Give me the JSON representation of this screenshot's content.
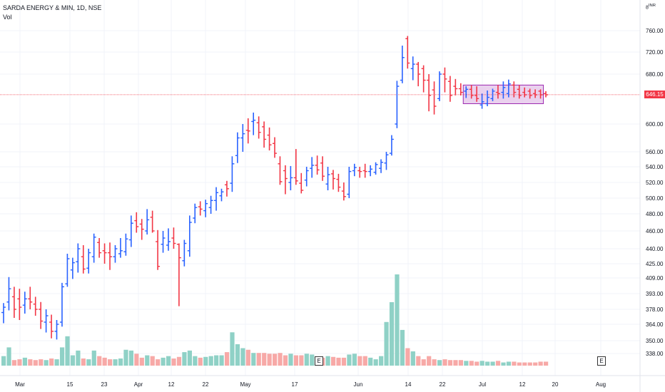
{
  "header": {
    "title": "SARDA ENERGY & MIN, 1D, NSE",
    "volume_label": "Vol"
  },
  "currency_label": "INR",
  "currency_index": "8",
  "last_price_label": "646.15",
  "earnings_badge": "E",
  "colors": {
    "up": "#2962ff",
    "down": "#f23645",
    "vol_up": "#8fd1c6",
    "vol_down": "#f7a9a7",
    "box_fill": "#e1bee7",
    "box_stroke": "#9c27b0",
    "grid": "#f0f3fa"
  },
  "chart_data": {
    "type": "ohlc",
    "symbol": "SARDA ENERGY & MIN",
    "interval": "1D",
    "exchange": "NSE",
    "y_ticks": [
      "760.00",
      "720.00",
      "680.00",
      "600.00",
      "560.00",
      "540.00",
      "520.00",
      "500.00",
      "480.00",
      "460.00",
      "440.00",
      "425.00",
      "409.00",
      "393.00",
      "378.00",
      "364.00",
      "350.00",
      "338.00"
    ],
    "x_ticks": [
      "Mar",
      "15",
      "23",
      "Apr",
      "12",
      "22",
      "May",
      "17",
      "Jun",
      "14",
      "22",
      "Jul",
      "12",
      "20",
      "Aug"
    ],
    "last_price": 646.15,
    "consolidation_box": {
      "price_high": 662,
      "price_low": 632
    },
    "bars": [
      {
        "o": 375,
        "h": 384,
        "l": 365,
        "c": 380
      },
      {
        "o": 385,
        "h": 410,
        "l": 377,
        "c": 398
      },
      {
        "o": 390,
        "h": 400,
        "l": 370,
        "c": 378
      },
      {
        "o": 388,
        "h": 398,
        "l": 368,
        "c": 380
      },
      {
        "o": 382,
        "h": 395,
        "l": 374,
        "c": 388
      },
      {
        "o": 388,
        "h": 400,
        "l": 378,
        "c": 385
      },
      {
        "o": 383,
        "h": 390,
        "l": 372,
        "c": 378
      },
      {
        "o": 378,
        "h": 385,
        "l": 360,
        "c": 367
      },
      {
        "o": 366,
        "h": 378,
        "l": 357,
        "c": 372
      },
      {
        "o": 366,
        "h": 373,
        "l": 352,
        "c": 358
      },
      {
        "o": 358,
        "h": 368,
        "l": 351,
        "c": 364
      },
      {
        "o": 366,
        "h": 404,
        "l": 362,
        "c": 400
      },
      {
        "o": 403,
        "h": 435,
        "l": 400,
        "c": 430
      },
      {
        "o": 418,
        "h": 431,
        "l": 408,
        "c": 426
      },
      {
        "o": 427,
        "h": 446,
        "l": 415,
        "c": 440
      },
      {
        "o": 432,
        "h": 444,
        "l": 414,
        "c": 419
      },
      {
        "o": 420,
        "h": 440,
        "l": 414,
        "c": 436
      },
      {
        "o": 432,
        "h": 457,
        "l": 426,
        "c": 453
      },
      {
        "o": 447,
        "h": 452,
        "l": 431,
        "c": 436
      },
      {
        "o": 438,
        "h": 446,
        "l": 425,
        "c": 436
      },
      {
        "o": 436,
        "h": 447,
        "l": 418,
        "c": 432
      },
      {
        "o": 432,
        "h": 444,
        "l": 426,
        "c": 440
      },
      {
        "o": 435,
        "h": 452,
        "l": 431,
        "c": 438
      },
      {
        "o": 437,
        "h": 457,
        "l": 433,
        "c": 451
      },
      {
        "o": 450,
        "h": 478,
        "l": 442,
        "c": 469
      },
      {
        "o": 472,
        "h": 482,
        "l": 458,
        "c": 465
      },
      {
        "o": 468,
        "h": 474,
        "l": 450,
        "c": 462
      },
      {
        "o": 460,
        "h": 486,
        "l": 456,
        "c": 473
      },
      {
        "o": 476,
        "h": 484,
        "l": 458,
        "c": 460
      },
      {
        "o": 448,
        "h": 461,
        "l": 418,
        "c": 422
      },
      {
        "o": 445,
        "h": 460,
        "l": 436,
        "c": 452
      },
      {
        "o": 444,
        "h": 463,
        "l": 438,
        "c": 448
      },
      {
        "o": 452,
        "h": 464,
        "l": 440,
        "c": 446
      },
      {
        "o": 445,
        "h": 446,
        "l": 381,
        "c": 431
      },
      {
        "o": 428,
        "h": 450,
        "l": 422,
        "c": 446
      },
      {
        "o": 438,
        "h": 478,
        "l": 432,
        "c": 470
      },
      {
        "o": 475,
        "h": 493,
        "l": 469,
        "c": 488
      },
      {
        "o": 489,
        "h": 496,
        "l": 478,
        "c": 486
      },
      {
        "o": 484,
        "h": 498,
        "l": 476,
        "c": 493
      },
      {
        "o": 488,
        "h": 503,
        "l": 480,
        "c": 497
      },
      {
        "o": 497,
        "h": 514,
        "l": 484,
        "c": 507
      },
      {
        "o": 503,
        "h": 512,
        "l": 496,
        "c": 508
      },
      {
        "o": 517,
        "h": 522,
        "l": 502,
        "c": 512
      },
      {
        "o": 519,
        "h": 554,
        "l": 508,
        "c": 544
      },
      {
        "o": 555,
        "h": 588,
        "l": 545,
        "c": 580
      },
      {
        "o": 580,
        "h": 600,
        "l": 560,
        "c": 586
      },
      {
        "o": 591,
        "h": 609,
        "l": 572,
        "c": 590
      },
      {
        "o": 604,
        "h": 618,
        "l": 584,
        "c": 606
      },
      {
        "o": 602,
        "h": 612,
        "l": 579,
        "c": 588
      },
      {
        "o": 596,
        "h": 604,
        "l": 566,
        "c": 578
      },
      {
        "o": 584,
        "h": 595,
        "l": 562,
        "c": 570
      },
      {
        "o": 572,
        "h": 581,
        "l": 552,
        "c": 558
      },
      {
        "o": 544,
        "h": 554,
        "l": 517,
        "c": 521
      },
      {
        "o": 535,
        "h": 542,
        "l": 505,
        "c": 525
      },
      {
        "o": 520,
        "h": 541,
        "l": 510,
        "c": 526
      },
      {
        "o": 526,
        "h": 564,
        "l": 517,
        "c": 522
      },
      {
        "o": 519,
        "h": 532,
        "l": 506,
        "c": 510
      },
      {
        "o": 523,
        "h": 540,
        "l": 515,
        "c": 535
      },
      {
        "o": 538,
        "h": 553,
        "l": 526,
        "c": 542
      },
      {
        "o": 542,
        "h": 555,
        "l": 530,
        "c": 536
      },
      {
        "o": 545,
        "h": 554,
        "l": 522,
        "c": 528
      },
      {
        "o": 518,
        "h": 540,
        "l": 510,
        "c": 530
      },
      {
        "o": 531,
        "h": 536,
        "l": 511,
        "c": 525
      },
      {
        "o": 524,
        "h": 531,
        "l": 508,
        "c": 514
      },
      {
        "o": 509,
        "h": 520,
        "l": 497,
        "c": 502
      },
      {
        "o": 505,
        "h": 540,
        "l": 500,
        "c": 534
      },
      {
        "o": 535,
        "h": 544,
        "l": 528,
        "c": 539
      },
      {
        "o": 535,
        "h": 540,
        "l": 526,
        "c": 534
      },
      {
        "o": 535,
        "h": 544,
        "l": 526,
        "c": 534
      },
      {
        "o": 534,
        "h": 542,
        "l": 528,
        "c": 537
      },
      {
        "o": 533,
        "h": 546,
        "l": 530,
        "c": 543
      },
      {
        "o": 538,
        "h": 550,
        "l": 532,
        "c": 546
      },
      {
        "o": 545,
        "h": 560,
        "l": 536,
        "c": 556
      },
      {
        "o": 558,
        "h": 584,
        "l": 555,
        "c": 578
      },
      {
        "o": 600,
        "h": 669,
        "l": 594,
        "c": 660
      },
      {
        "o": 670,
        "h": 732,
        "l": 665,
        "c": 710
      },
      {
        "o": 745,
        "h": 750,
        "l": 690,
        "c": 700
      },
      {
        "o": 690,
        "h": 712,
        "l": 670,
        "c": 698
      },
      {
        "o": 698,
        "h": 702,
        "l": 660,
        "c": 680
      },
      {
        "o": 690,
        "h": 696,
        "l": 650,
        "c": 670
      },
      {
        "o": 670,
        "h": 680,
        "l": 620,
        "c": 645
      },
      {
        "o": 654,
        "h": 668,
        "l": 615,
        "c": 628
      },
      {
        "o": 640,
        "h": 685,
        "l": 636,
        "c": 680
      },
      {
        "o": 680,
        "h": 692,
        "l": 650,
        "c": 672
      },
      {
        "o": 668,
        "h": 677,
        "l": 635,
        "c": 645
      },
      {
        "o": 660,
        "h": 672,
        "l": 645,
        "c": 656
      },
      {
        "o": 656,
        "h": 665,
        "l": 645,
        "c": 650
      },
      {
        "o": 652,
        "h": 660,
        "l": 641,
        "c": 655
      },
      {
        "o": 655,
        "h": 662,
        "l": 640,
        "c": 645
      },
      {
        "o": 645,
        "h": 660,
        "l": 635,
        "c": 640
      },
      {
        "o": 630,
        "h": 648,
        "l": 624,
        "c": 635
      },
      {
        "o": 632,
        "h": 653,
        "l": 628,
        "c": 642
      },
      {
        "o": 640,
        "h": 656,
        "l": 636,
        "c": 652
      },
      {
        "o": 650,
        "h": 662,
        "l": 640,
        "c": 648
      },
      {
        "o": 650,
        "h": 668,
        "l": 640,
        "c": 658
      },
      {
        "o": 648,
        "h": 671,
        "l": 642,
        "c": 664
      },
      {
        "o": 662,
        "h": 668,
        "l": 642,
        "c": 650
      },
      {
        "o": 655,
        "h": 662,
        "l": 640,
        "c": 645
      },
      {
        "o": 650,
        "h": 658,
        "l": 642,
        "c": 646
      },
      {
        "o": 652,
        "h": 656,
        "l": 640,
        "c": 645
      },
      {
        "o": 648,
        "h": 655,
        "l": 641,
        "c": 646
      },
      {
        "o": 652,
        "h": 655,
        "l": 640,
        "c": 646
      },
      {
        "o": 648,
        "h": 652,
        "l": 642,
        "c": 646
      }
    ],
    "volume": [
      12,
      23,
      7,
      8,
      10,
      8,
      7,
      8,
      7,
      9,
      8,
      23,
      37,
      13,
      19,
      9,
      8,
      19,
      12,
      10,
      8,
      8,
      9,
      20,
      19,
      15,
      10,
      13,
      12,
      8,
      10,
      12,
      9,
      11,
      17,
      19,
      12,
      10,
      11,
      12,
      13,
      13,
      17,
      42,
      27,
      22,
      20,
      16,
      16,
      16,
      15,
      15,
      16,
      13,
      15,
      13,
      13,
      15,
      14,
      11,
      10,
      12,
      11,
      10,
      10,
      14,
      15,
      12,
      12,
      10,
      8,
      12,
      55,
      80,
      115,
      45,
      22,
      18,
      12,
      8,
      12,
      8,
      7,
      8,
      7,
      7,
      7,
      6,
      6,
      5,
      6,
      5,
      5,
      6,
      4,
      5,
      5,
      4,
      4,
      4,
      4,
      5,
      5
    ]
  }
}
